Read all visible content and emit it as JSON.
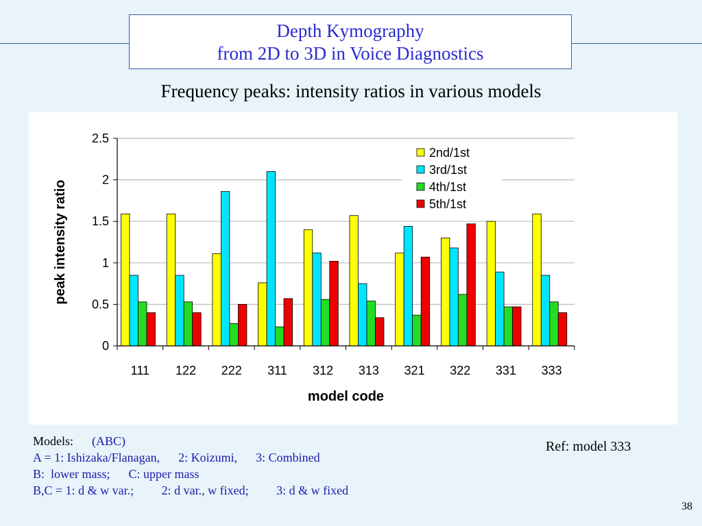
{
  "slide": {
    "title_line1": "Depth Kymography",
    "title_line2": "from 2D to 3D in Voice Diagnostics",
    "subtitle": "Frequency peaks: intensity ratios in various models",
    "page_number": "38",
    "ref": "Ref: model 333"
  },
  "notes": {
    "models_label": "Models:",
    "models_value": "(ABC)",
    "line_a_1": "A = 1: Ishizaka/Flanagan,",
    "line_a_2": "2: Koizumi,",
    "line_a_3": "3: Combined",
    "line_b_1": "B:  lower mass;",
    "line_b_2": "C: upper mass",
    "line_bc_1": "B,C = 1: d & w var.;",
    "line_bc_2": "2: d var., w fixed;",
    "line_bc_3": "3: d & w fixed"
  },
  "colors": {
    "series": [
      "#ffff00",
      "#00e5ff",
      "#22dd22",
      "#ee0000"
    ]
  },
  "chart_data": {
    "type": "bar",
    "xlabel": "model code",
    "ylabel": "peak intensity ratio",
    "ylim": [
      0,
      2.5
    ],
    "yticks": [
      "0",
      "0.5",
      "1",
      "1.5",
      "2",
      "2.5"
    ],
    "grid": true,
    "legend_position": "top-right",
    "categories": [
      "111",
      "122",
      "222",
      "311",
      "312",
      "313",
      "321",
      "322",
      "331",
      "333"
    ],
    "series": [
      {
        "name": "2nd/1st",
        "values": [
          1.59,
          1.59,
          1.11,
          0.76,
          1.4,
          1.57,
          1.12,
          1.3,
          1.5,
          1.59
        ]
      },
      {
        "name": "3rd/1st",
        "values": [
          0.85,
          0.85,
          1.86,
          2.1,
          1.12,
          0.75,
          1.44,
          1.18,
          0.89,
          0.85
        ]
      },
      {
        "name": "4th/1st",
        "values": [
          0.53,
          0.53,
          0.27,
          0.23,
          0.56,
          0.54,
          0.37,
          0.62,
          0.47,
          0.53
        ]
      },
      {
        "name": "5th/1st",
        "values": [
          0.4,
          0.4,
          0.5,
          0.57,
          1.02,
          0.34,
          1.07,
          1.47,
          0.47,
          0.4
        ]
      }
    ]
  }
}
